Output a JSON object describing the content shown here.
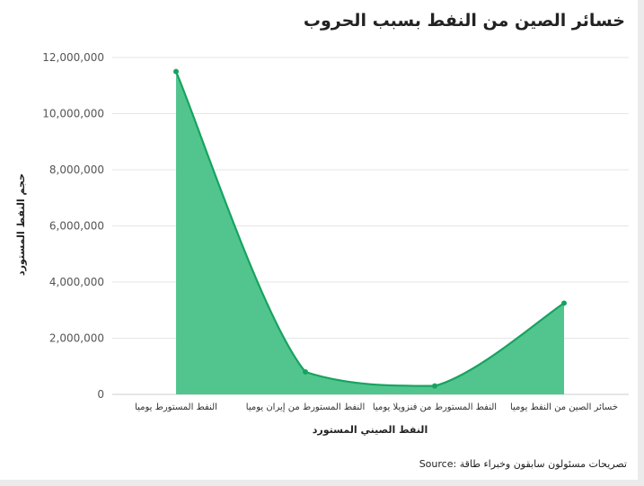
{
  "chart_data": {
    "type": "area",
    "title": "خسائر الصين من النفط بسبب الحروب",
    "xlabel": "النفط الصيني المستورد",
    "ylabel": "حجم النفط المستورد",
    "categories": [
      "النفط المستورط يوميا",
      "النفط المستورط من إيران يوميا",
      "النفط المستورط من فنزويلا يوميا",
      "خسائر الصين من النفط يوميا"
    ],
    "values": [
      11500000,
      800000,
      300000,
      3250000
    ],
    "ylim": [
      0,
      12000000
    ],
    "yticks": [
      0,
      2000000,
      4000000,
      6000000,
      8000000,
      10000000,
      12000000
    ],
    "ytick_labels": [
      "0",
      "2,000,000",
      "4,000,000",
      "6,000,000",
      "8,000,000",
      "10,000,000",
      "12,000,000"
    ],
    "grid": true,
    "colors": {
      "fill": "#52c58f",
      "line": "#17a35f",
      "grid": "#e6e6e6",
      "axis": "#cccccc",
      "tick_text": "#555555"
    },
    "source_label": "Source:",
    "source_text": "تصريحات مسئولون سابقون وخبراء طاقة"
  }
}
